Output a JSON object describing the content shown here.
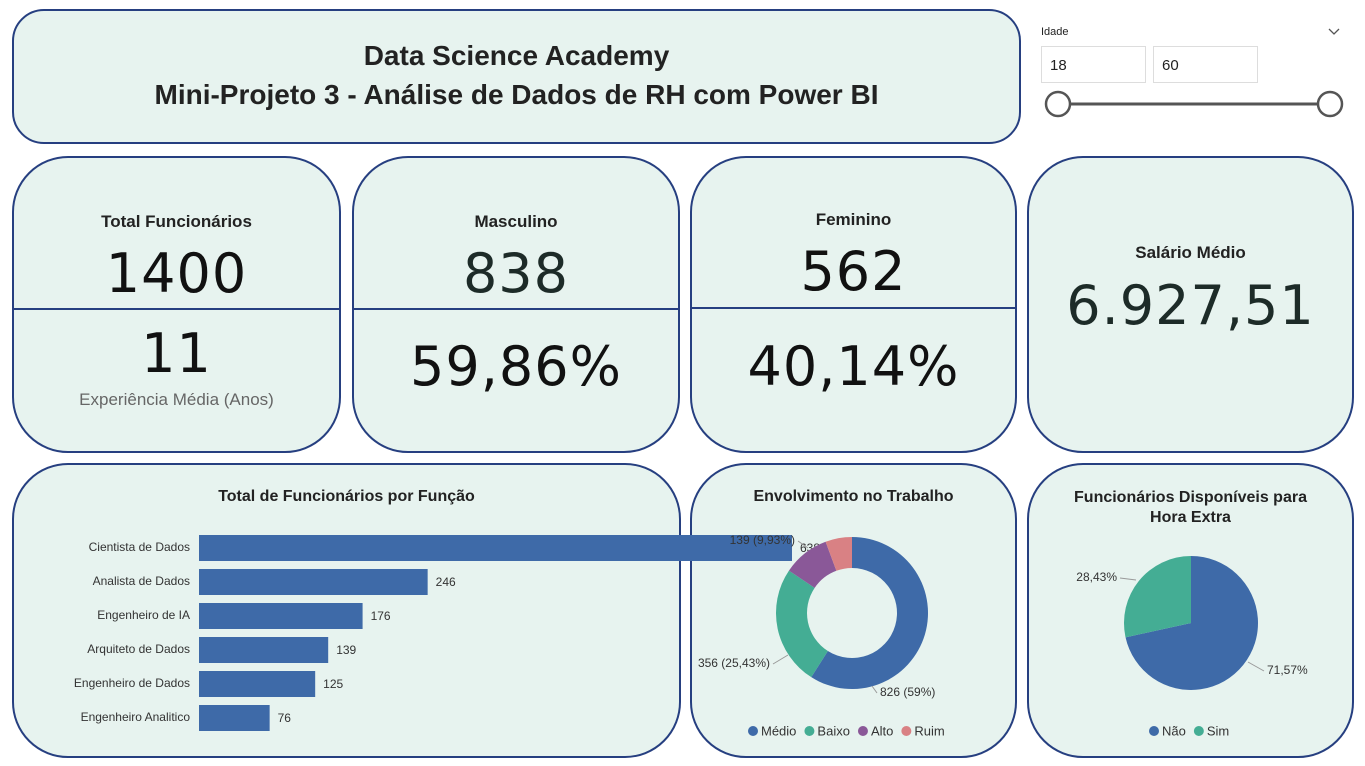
{
  "header": {
    "title_line1": "Data Science Academy",
    "title_line2": "Mini-Projeto 3 - Análise de Dados de RH com Power BI"
  },
  "slicer": {
    "label": "Idade",
    "min": "18",
    "max": "60"
  },
  "cards": [
    {
      "label": "Total Funcionários",
      "value": "1400",
      "value2": "11",
      "label2": "Experiência Média (Anos)"
    },
    {
      "label": "Masculino",
      "value": "838",
      "value2": "59,86%"
    },
    {
      "label": "Feminino",
      "value": "562",
      "value2": "40,14%"
    },
    {
      "label": "Salário Médio",
      "value": "6.927,51"
    }
  ],
  "chart_data": [
    {
      "type": "hbar",
      "title": "Total de Funcionários por Função",
      "categories": [
        "Cientista de Dados",
        "Analista de Dados",
        "Engenheiro de IA",
        "Arquiteto de Dados",
        "Engenheiro de Dados",
        "Engenheiro Analitico"
      ],
      "values": [
        638,
        246,
        176,
        139,
        125,
        76
      ],
      "color": "#3e6aa8"
    },
    {
      "type": "donut",
      "title": "Envolvimento no Trabalho",
      "categories": [
        "Médio",
        "Baixo",
        "Alto",
        "Ruim"
      ],
      "values": [
        826,
        356,
        139,
        79
      ],
      "value_labels": [
        "826 (59%)",
        "356 (25,43%)",
        "139 (9,93%)",
        null
      ],
      "colors": [
        "#3e6aa8",
        "#44ad94",
        "#8a5898",
        "#d98184"
      ]
    },
    {
      "type": "pie",
      "title": "Funcionários Disponíveis para Hora Extra",
      "categories": [
        "Não",
        "Sim"
      ],
      "values": [
        71.57,
        28.43
      ],
      "value_labels": [
        "71,57%",
        "28,43%"
      ],
      "colors": [
        "#3e6aa8",
        "#44ad94"
      ]
    }
  ]
}
